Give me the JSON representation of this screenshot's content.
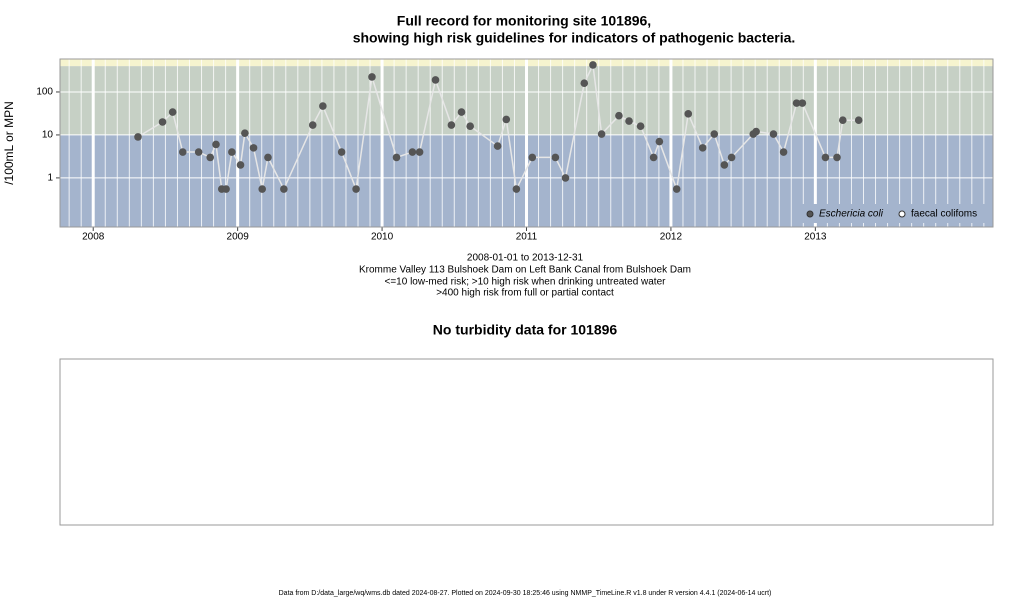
{
  "chart_data": [
    {
      "type": "line",
      "title": [
        "Full record for monitoring site 101896,",
        "showing high risk guidelines for indicators of pathogenic bacteria."
      ],
      "subtitle": [
        "2008-01-01 to 2013-12-31",
        "Kromme Valley 113 Bulshoek Dam on Left Bank Canal from Bulshoek Dam",
        "<=10 low-med risk; >10 high risk when drinking untreated water",
        ">400 high risk from full or partial contact"
      ],
      "y_label": "/100mL or MPN",
      "log_scale": true,
      "xlim": [
        2007.77,
        2014.23
      ],
      "xticks": [
        2008,
        2009,
        2010,
        2011,
        2012,
        2013
      ],
      "ylim": [
        0.072,
        585
      ],
      "yticks": [
        1,
        10,
        100
      ],
      "guidelines": [
        10,
        400
      ],
      "band_colors": [
        "#a4b4cd",
        "#c6d0c5",
        "#f6f4cf"
      ],
      "line_color": "#e6e6e6",
      "series": [
        {
          "name": "Eschericia coli",
          "color": "#555555",
          "x": [
            2008.31,
            2008.48,
            2008.55,
            2008.62,
            2008.73,
            2008.81,
            2008.85,
            2008.89,
            2008.92,
            2008.96,
            2009.02,
            2009.05,
            2009.11,
            2009.17,
            2009.21,
            2009.32,
            2009.52,
            2009.59,
            2009.72,
            2009.82,
            2009.93,
            2010.1,
            2010.21,
            2010.26,
            2010.37,
            2010.48,
            2010.55,
            2010.61,
            2010.8,
            2010.86,
            2010.93,
            2011.04,
            2011.2,
            2011.27,
            2011.4,
            2011.46,
            2011.52,
            2011.64,
            2011.71,
            2011.79,
            2011.88,
            2011.92,
            2012.04,
            2012.12,
            2012.22,
            2012.3,
            2012.37,
            2012.42,
            2012.57,
            2012.59,
            2012.71,
            2012.78,
            2012.87,
            2012.91,
            2013.07,
            2013.15,
            2013.19,
            2013.3
          ],
          "values": [
            9,
            20,
            34,
            4,
            4,
            3,
            6,
            0.55,
            0.55,
            4,
            2,
            11,
            5,
            0.55,
            3,
            0.55,
            17,
            47,
            4,
            0.55,
            224,
            3,
            4,
            4,
            190,
            17,
            34,
            16,
            5.5,
            23,
            0.55,
            3,
            3,
            1,
            160,
            425,
            10.5,
            28,
            21,
            16,
            3,
            7,
            0.55,
            31,
            5,
            10.5,
            2,
            3,
            10.5,
            12,
            10.5,
            4,
            55,
            55,
            3,
            3,
            22,
            22
          ]
        }
      ],
      "legend": [
        {
          "name": "Eschericia coli",
          "marker": "filled"
        },
        {
          "name": "faecal colifoms",
          "marker": "open"
        }
      ],
      "legend_position": "bottom-right"
    },
    {
      "type": "empty",
      "title": "No turbidity data for 101896"
    }
  ],
  "footer": "Data from D:/data_large/wq/wms.db dated 2024-08-27. Plotted on 2024-09-30 18:25:46 using NMMP_TimeLine.R v1.8 under R version 4.4.1 (2024-06-14 ucrt)"
}
